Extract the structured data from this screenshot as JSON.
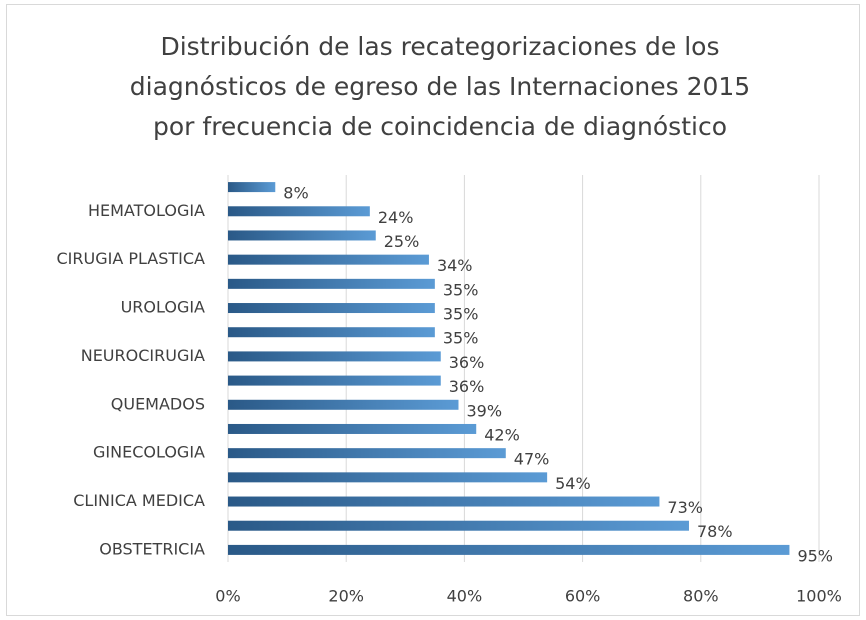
{
  "chart_data": {
    "type": "barh",
    "title": [
      "Distribución de las recategorizaciones de los",
      "diagnósticos de egreso de las Internaciones 2015",
      "por frecuencia de coincidencia de diagnóstico"
    ],
    "categories": [
      "OBSTETRICIA",
      null,
      "CLINICA MEDICA",
      null,
      "GINECOLOGIA",
      null,
      "QUEMADOS",
      null,
      "NEUROCIRUGIA",
      null,
      "UROLOGIA",
      null,
      "CIRUGIA PLASTICA",
      null,
      "HEMATOLOGIA",
      null
    ],
    "values": [
      95,
      78,
      73,
      54,
      47,
      42,
      39,
      36,
      36,
      35,
      35,
      35,
      34,
      25,
      24,
      8
    ],
    "value_labels": [
      "95%",
      "78%",
      "73%",
      "54%",
      "47%",
      "42%",
      "39%",
      "36%",
      "36%",
      "35%",
      "35%",
      "35%",
      "34%",
      "25%",
      "24%",
      "8%"
    ],
    "gradient": [
      "#2a5987",
      "#5b9bd5"
    ],
    "xlim": [
      0,
      100
    ],
    "xticks": [
      {
        "value": 0,
        "label": "0%"
      },
      {
        "value": 20,
        "label": "20%"
      },
      {
        "value": 40,
        "label": "40%"
      },
      {
        "value": 60,
        "label": "60%"
      },
      {
        "value": 80,
        "label": "80%"
      },
      {
        "value": 100,
        "label": "100%"
      }
    ],
    "grid": true
  }
}
